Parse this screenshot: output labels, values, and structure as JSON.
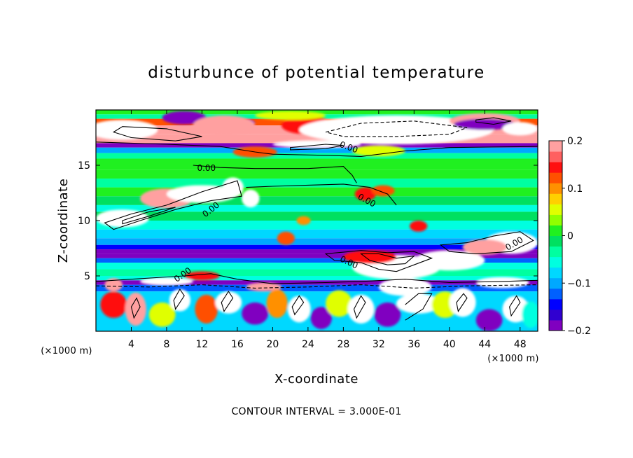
{
  "chart_data": {
    "type": "heatmap",
    "title": "disturbunce of potential temperature",
    "xlabel": "X-coordinate",
    "ylabel": "Z-coordinate",
    "x_unit": "(×1000 m)",
    "y_unit": "(×1000 m)",
    "xlim": [
      0,
      50
    ],
    "ylim": [
      0,
      20
    ],
    "x_ticks": [
      4,
      8,
      12,
      16,
      20,
      24,
      28,
      32,
      36,
      40,
      44,
      48
    ],
    "y_ticks": [
      5,
      10,
      15
    ],
    "colorbar": {
      "range": [
        -0.2,
        0.2
      ],
      "tick_values": [
        0.2,
        0.1,
        0,
        -0.1,
        -0.2
      ],
      "tick_labels": [
        "0.2",
        "0.1",
        "0",
        "−0.1",
        "−0.2"
      ],
      "colors": [
        "#8000c0",
        "#3000d0",
        "#0000ff",
        "#0060ff",
        "#00a8ff",
        "#00d8ff",
        "#00ffe0",
        "#00ffa0",
        "#00e060",
        "#20f020",
        "#90ff00",
        "#e0ff00",
        "#ffd000",
        "#ff9000",
        "#ff5000",
        "#ff1010",
        "#ff6060",
        "#ffa0a0"
      ]
    },
    "contour_label": "0.00",
    "contour_interval_text": "CONTOUR INTERVAL = 3.000E-01",
    "bands": [
      {
        "z0": 19.6,
        "z1": 20.0,
        "value": 0.02
      },
      {
        "z0": 19.2,
        "z1": 19.6,
        "value": -0.03
      },
      {
        "z0": 18.6,
        "z1": 19.2,
        "value": 0.12
      },
      {
        "z0": 17.8,
        "z1": 18.6,
        "value": 0.18
      },
      {
        "z0": 17.0,
        "z1": 17.8,
        "value": 0.2
      },
      {
        "z0": 16.6,
        "z1": 17.0,
        "value": -0.19
      },
      {
        "z0": 16.1,
        "z1": 16.6,
        "value": -0.1
      },
      {
        "z0": 15.6,
        "z1": 16.1,
        "value": -0.04
      },
      {
        "z0": 14.6,
        "z1": 15.6,
        "value": 0.01
      },
      {
        "z0": 13.8,
        "z1": 14.6,
        "value": 0.0
      },
      {
        "z0": 13.0,
        "z1": 13.8,
        "value": -0.03
      },
      {
        "z0": 12.2,
        "z1": 13.0,
        "value": 0.01
      },
      {
        "z0": 11.4,
        "z1": 12.2,
        "value": -0.02
      },
      {
        "z0": 10.8,
        "z1": 11.4,
        "value": -0.06
      },
      {
        "z0": 10.0,
        "z1": 10.8,
        "value": -0.02
      },
      {
        "z0": 9.2,
        "z1": 10.0,
        "value": -0.05
      },
      {
        "z0": 8.4,
        "z1": 9.2,
        "value": -0.08
      },
      {
        "z0": 7.8,
        "z1": 8.4,
        "value": -0.1
      },
      {
        "z0": 7.4,
        "z1": 7.8,
        "value": -0.14
      },
      {
        "z0": 7.0,
        "z1": 7.4,
        "value": -0.18
      },
      {
        "z0": 6.6,
        "z1": 7.0,
        "value": -0.2
      },
      {
        "z0": 6.2,
        "z1": 6.6,
        "value": -0.12
      },
      {
        "z0": 5.6,
        "z1": 6.2,
        "value": -0.06
      },
      {
        "z0": 5.0,
        "z1": 5.6,
        "value": -0.03
      },
      {
        "z0": 4.6,
        "z1": 5.0,
        "value": -0.06
      },
      {
        "z0": 4.2,
        "z1": 4.6,
        "value": -0.19
      },
      {
        "z0": 3.6,
        "z1": 4.2,
        "value": -0.12
      },
      {
        "z0": 0.0,
        "z1": 3.6,
        "value": -0.07
      }
    ],
    "blobs": [
      {
        "x": 3,
        "z": 18.2,
        "rx": 4,
        "rz": 0.9,
        "value": 0.22
      },
      {
        "x": 10,
        "z": 19.3,
        "rx": 2.5,
        "rz": 0.6,
        "value": -0.2
      },
      {
        "x": 16,
        "z": 18.8,
        "rx": 2,
        "rz": 0.5,
        "value": -0.15
      },
      {
        "x": 14.5,
        "z": 18.6,
        "rx": 3.5,
        "rz": 0.9,
        "value": 0.2
      },
      {
        "x": 24,
        "z": 18.6,
        "rx": 3,
        "rz": 0.8,
        "value": 0.15
      },
      {
        "x": 34,
        "z": 18.2,
        "rx": 11,
        "rz": 1.3,
        "value": 0.22
      },
      {
        "x": 34,
        "z": 17.8,
        "rx": 9,
        "rz": 0.9,
        "value": 0.25
      },
      {
        "x": 22,
        "z": 19.5,
        "rx": 4,
        "rz": 0.4,
        "value": 0.05
      },
      {
        "x": 44,
        "z": 19.0,
        "rx": 4,
        "rz": 0.7,
        "value": 0.2
      },
      {
        "x": 44,
        "z": 18.7,
        "rx": 3.5,
        "rz": 0.5,
        "value": -0.2
      },
      {
        "x": 48,
        "z": 18.3,
        "rx": 2,
        "rz": 0.6,
        "value": 0.22
      },
      {
        "x": 25,
        "z": 16.9,
        "rx": 5,
        "rz": 0.35,
        "value": 0.22
      },
      {
        "x": 18,
        "z": 16.2,
        "rx": 2.5,
        "rz": 0.5,
        "value": 0.12
      },
      {
        "x": 32,
        "z": 16.3,
        "rx": 3,
        "rz": 0.5,
        "value": 0.05
      },
      {
        "x": 8,
        "z": 12.0,
        "rx": 3,
        "rz": 0.9,
        "value": 0.18
      },
      {
        "x": 3,
        "z": 10.2,
        "rx": 3,
        "rz": 0.8,
        "value": 0.25
      },
      {
        "x": 12,
        "z": 12.4,
        "rx": 4,
        "rz": 0.8,
        "value": 0.22
      },
      {
        "x": 15.5,
        "z": 13.0,
        "rx": 1.2,
        "rz": 0.9,
        "value": 0.22
      },
      {
        "x": 17.5,
        "z": 12.0,
        "rx": 1,
        "rz": 0.8,
        "value": 0.25
      },
      {
        "x": 30.5,
        "z": 12.4,
        "rx": 1.2,
        "rz": 0.6,
        "value": 0.15
      },
      {
        "x": 32.5,
        "z": 12.7,
        "rx": 1.3,
        "rz": 0.5,
        "value": 0.12
      },
      {
        "x": 36.5,
        "z": 9.5,
        "rx": 1,
        "rz": 0.5,
        "value": 0.15
      },
      {
        "x": 21.5,
        "z": 8.4,
        "rx": 1,
        "rz": 0.6,
        "value": 0.12
      },
      {
        "x": 23.5,
        "z": 10.0,
        "rx": 0.8,
        "rz": 0.4,
        "value": 0.1
      },
      {
        "x": 34,
        "z": 5.8,
        "rx": 5,
        "rz": 1.1,
        "value": 0.25
      },
      {
        "x": 40,
        "z": 6.4,
        "rx": 4,
        "rz": 0.9,
        "value": 0.22
      },
      {
        "x": 47,
        "z": 8.0,
        "rx": 3,
        "rz": 1.0,
        "value": 0.25
      },
      {
        "x": 44,
        "z": 7.6,
        "rx": 2.5,
        "rz": 0.7,
        "value": 0.2
      },
      {
        "x": 31,
        "z": 6.7,
        "rx": 3,
        "rz": 0.6,
        "value": 0.15
      },
      {
        "x": 8,
        "z": 4.5,
        "rx": 3,
        "rz": 0.35,
        "value": 0.22
      },
      {
        "x": 12,
        "z": 5.0,
        "rx": 2,
        "rz": 0.4,
        "value": 0.15
      },
      {
        "x": 2,
        "z": 4.2,
        "rx": 1,
        "rz": 0.6,
        "value": 0.2
      },
      {
        "x": 19,
        "z": 4.0,
        "rx": 2,
        "rz": 0.4,
        "value": 0.2
      },
      {
        "x": 35,
        "z": 4.0,
        "rx": 3,
        "rz": 0.8,
        "value": 0.25
      },
      {
        "x": 36.5,
        "z": 2.5,
        "rx": 2.5,
        "rz": 0.9,
        "value": 0.25
      },
      {
        "x": 46,
        "z": 4.4,
        "rx": 3,
        "rz": 0.5,
        "value": 0.25
      },
      {
        "x": 2,
        "z": 2.4,
        "rx": 1.5,
        "rz": 1.2,
        "value": 0.15
      },
      {
        "x": 4.5,
        "z": 2.0,
        "rx": 1.2,
        "rz": 1.5,
        "value": 0.2
      },
      {
        "x": 7.5,
        "z": 1.5,
        "rx": 1.5,
        "rz": 1.1,
        "value": 0.05
      },
      {
        "x": 9.5,
        "z": 2.8,
        "rx": 1.2,
        "rz": 1.0,
        "value": 0.25
      },
      {
        "x": 12.5,
        "z": 2.0,
        "rx": 1.3,
        "rz": 1.3,
        "value": 0.12
      },
      {
        "x": 15,
        "z": 2.6,
        "rx": 1.5,
        "rz": 1.0,
        "value": 0.25
      },
      {
        "x": 18,
        "z": 1.6,
        "rx": 1.5,
        "rz": 1.0,
        "value": -0.2
      },
      {
        "x": 20.5,
        "z": 2.5,
        "rx": 1.2,
        "rz": 1.3,
        "value": 0.1
      },
      {
        "x": 23,
        "z": 2.0,
        "rx": 1.3,
        "rz": 1.2,
        "value": 0.25
      },
      {
        "x": 25.5,
        "z": 1.2,
        "rx": 1.2,
        "rz": 1.0,
        "value": -0.2
      },
      {
        "x": 27.5,
        "z": 2.5,
        "rx": 1.5,
        "rz": 1.2,
        "value": 0.05
      },
      {
        "x": 30,
        "z": 2.0,
        "rx": 1.5,
        "rz": 1.3,
        "value": 0.22
      },
      {
        "x": 33,
        "z": 1.5,
        "rx": 1.5,
        "rz": 1.1,
        "value": -0.18
      },
      {
        "x": 39.5,
        "z": 2.4,
        "rx": 1.5,
        "rz": 1.2,
        "value": 0.05
      },
      {
        "x": 41.5,
        "z": 2.6,
        "rx": 1.5,
        "rz": 1.3,
        "value": 0.22
      },
      {
        "x": 44.5,
        "z": 1.0,
        "rx": 1.5,
        "rz": 1.0,
        "value": -0.18
      },
      {
        "x": 47.5,
        "z": 2.0,
        "rx": 1.5,
        "rz": 1.2,
        "value": 0.25
      },
      {
        "x": 49.2,
        "z": 1.5,
        "rx": 1.0,
        "rz": 1.2,
        "value": -0.05
      }
    ],
    "contours": [
      {
        "points": [
          [
            0,
            17.1
          ],
          [
            8,
            16.9
          ],
          [
            14,
            16.7
          ],
          [
            18,
            16.2
          ],
          [
            20,
            16.0
          ],
          [
            26,
            15.9
          ],
          [
            30,
            15.8
          ],
          [
            35,
            16.3
          ],
          [
            40,
            16.6
          ],
          [
            50,
            16.7
          ]
        ],
        "style": "solid"
      },
      {
        "points": [
          [
            3,
            18.5
          ],
          [
            8,
            18.3
          ],
          [
            12,
            17.6
          ],
          [
            9,
            17.2
          ],
          [
            4,
            17.5
          ],
          [
            2,
            18.0
          ]
        ],
        "style": "solid"
      },
      {
        "points": [
          [
            26,
            18.0
          ],
          [
            30,
            18.8
          ],
          [
            36,
            19.0
          ],
          [
            42,
            18.4
          ],
          [
            40,
            17.8
          ],
          [
            34,
            17.6
          ],
          [
            28,
            17.6
          ]
        ],
        "style": "dashed"
      },
      {
        "points": [
          [
            22,
            16.6
          ],
          [
            26,
            16.9
          ],
          [
            28,
            16.8
          ],
          [
            26,
            16.5
          ],
          [
            22,
            16.4
          ]
        ],
        "style": "solid"
      },
      {
        "points": [
          [
            43,
            19.1
          ],
          [
            45,
            19.3
          ],
          [
            47,
            19.0
          ],
          [
            45,
            18.7
          ],
          [
            43,
            18.9
          ]
        ],
        "style": "solid"
      },
      {
        "points": [
          [
            17,
            13.0
          ],
          [
            20,
            13.1
          ],
          [
            24,
            13.2
          ],
          [
            28,
            13.3
          ],
          [
            31,
            13.0
          ],
          [
            33,
            12.4
          ],
          [
            34,
            11.4
          ]
        ],
        "style": "solid"
      },
      {
        "points": [
          [
            11,
            15.0
          ],
          [
            14,
            14.8
          ],
          [
            18,
            14.7
          ],
          [
            24,
            14.7
          ],
          [
            28,
            14.9
          ],
          [
            29,
            14.1
          ],
          [
            29.5,
            13.4
          ]
        ],
        "style": "solid"
      },
      {
        "points": [
          [
            1,
            9.8
          ],
          [
            4,
            10.6
          ],
          [
            8,
            11.4
          ],
          [
            12,
            12.6
          ],
          [
            16,
            13.6
          ],
          [
            16.5,
            12.2
          ],
          [
            13,
            11.8
          ],
          [
            9,
            11.0
          ],
          [
            5,
            10.0
          ],
          [
            2,
            9.2
          ]
        ],
        "style": "solid"
      },
      {
        "points": [
          [
            3,
            10.0
          ],
          [
            6,
            10.8
          ],
          [
            9,
            11.2
          ],
          [
            6,
            10.4
          ],
          [
            3,
            9.7
          ]
        ],
        "style": "solid"
      },
      {
        "points": [
          [
            26,
            7.0
          ],
          [
            30,
            7.3
          ],
          [
            33,
            7.1
          ],
          [
            36,
            7.2
          ],
          [
            38,
            6.6
          ],
          [
            36,
            6.0
          ],
          [
            34,
            5.4
          ],
          [
            32,
            5.6
          ],
          [
            30,
            6.2
          ],
          [
            27,
            6.4
          ]
        ],
        "style": "solid"
      },
      {
        "points": [
          [
            30,
            7.0
          ],
          [
            32,
            7.0
          ],
          [
            34,
            6.6
          ],
          [
            36,
            6.8
          ],
          [
            35,
            6.1
          ],
          [
            33,
            6.0
          ],
          [
            31,
            6.4
          ]
        ],
        "style": "solid"
      },
      {
        "points": [
          [
            39,
            7.8
          ],
          [
            42,
            8.0
          ],
          [
            45,
            8.6
          ],
          [
            48,
            9.0
          ],
          [
            49.5,
            8.2
          ],
          [
            47,
            7.2
          ],
          [
            43,
            7.0
          ],
          [
            40,
            7.2
          ]
        ],
        "style": "solid"
      },
      {
        "points": [
          [
            0,
            4.5
          ],
          [
            4,
            4.7
          ],
          [
            10,
            5.0
          ],
          [
            13,
            5.2
          ],
          [
            16,
            4.7
          ],
          [
            20,
            4.3
          ],
          [
            26,
            4.4
          ],
          [
            30,
            4.5
          ],
          [
            35,
            4.7
          ],
          [
            40,
            4.4
          ],
          [
            46,
            4.5
          ],
          [
            50,
            4.6
          ]
        ],
        "style": "solid"
      },
      {
        "points": [
          [
            0,
            4.1
          ],
          [
            6,
            4.0
          ],
          [
            12,
            4.2
          ],
          [
            18,
            3.9
          ],
          [
            24,
            4.0
          ],
          [
            30,
            4.2
          ],
          [
            36,
            3.9
          ],
          [
            42,
            4.1
          ],
          [
            50,
            4.2
          ]
        ],
        "style": "dashed"
      },
      {
        "points": [
          [
            4.3,
            1.2
          ],
          [
            5,
            2.2
          ],
          [
            4.6,
            3.0
          ],
          [
            4,
            2.2
          ]
        ],
        "style": "solid"
      },
      {
        "points": [
          [
            9,
            2.0
          ],
          [
            10,
            3.2
          ],
          [
            9.5,
            3.8
          ],
          [
            8.8,
            2.8
          ]
        ],
        "style": "solid"
      },
      {
        "points": [
          [
            14.5,
            1.8
          ],
          [
            15.5,
            3.0
          ],
          [
            15,
            3.6
          ],
          [
            14.2,
            2.6
          ]
        ],
        "style": "solid"
      },
      {
        "points": [
          [
            22.5,
            1.5
          ],
          [
            23.5,
            2.6
          ],
          [
            23,
            3.2
          ],
          [
            22.2,
            2.2
          ]
        ],
        "style": "solid"
      },
      {
        "points": [
          [
            29.5,
            1.2
          ],
          [
            30.5,
            2.6
          ],
          [
            30,
            3.2
          ],
          [
            29.2,
            2.0
          ]
        ],
        "style": "solid"
      },
      {
        "points": [
          [
            35,
            1.0
          ],
          [
            37,
            2.0
          ],
          [
            38,
            3.4
          ],
          [
            36.5,
            3.4
          ],
          [
            35,
            2.4
          ]
        ],
        "style": "solid"
      },
      {
        "points": [
          [
            41,
            1.8
          ],
          [
            42,
            3.0
          ],
          [
            41.6,
            3.4
          ],
          [
            40.8,
            2.6
          ]
        ],
        "style": "solid"
      },
      {
        "points": [
          [
            47,
            1.4
          ],
          [
            48,
            2.6
          ],
          [
            47.6,
            3.2
          ],
          [
            46.8,
            2.2
          ]
        ],
        "style": "solid"
      }
    ],
    "contour_label_positions": [
      {
        "x": 12.5,
        "z": 14.5,
        "angle": 0
      },
      {
        "x": 13.2,
        "z": 10.8,
        "angle": -38
      },
      {
        "x": 30.5,
        "z": 11.6,
        "angle": 28
      },
      {
        "x": 28.5,
        "z": 6.0,
        "angle": 25
      },
      {
        "x": 10,
        "z": 4.9,
        "angle": -35
      },
      {
        "x": 28.5,
        "z": 16.4,
        "angle": 20
      },
      {
        "x": 47.5,
        "z": 7.7,
        "angle": -30
      }
    ]
  }
}
